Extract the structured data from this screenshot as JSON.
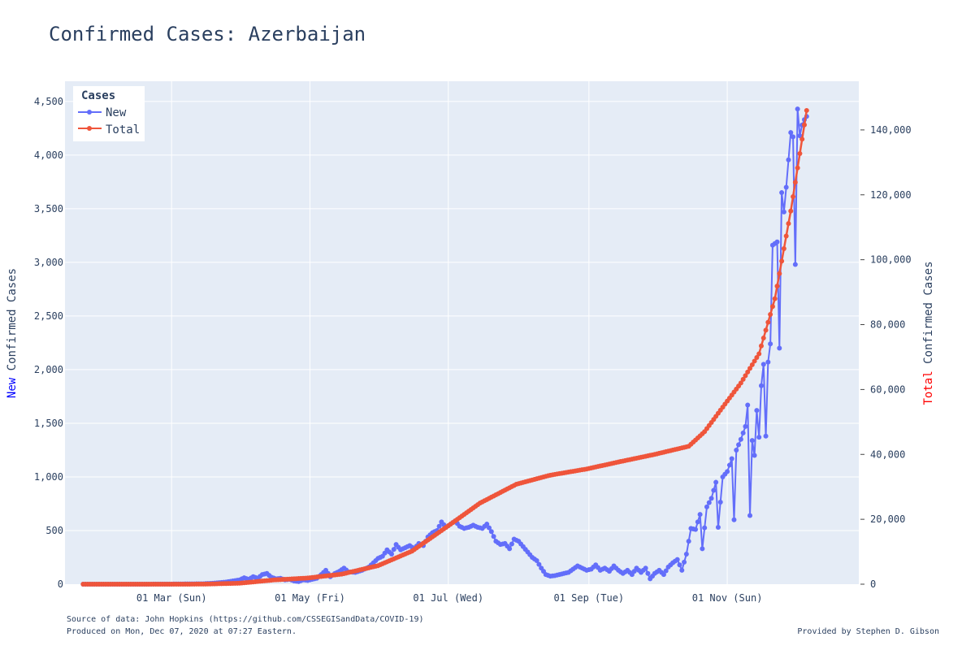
{
  "chart_data": {
    "type": "line",
    "title": "Confirmed Cases: Azerbaijan",
    "x_tick_labels": [
      "01 Mar (Sun)",
      "01 May (Fri)",
      "01 Jul (Wed)",
      "01 Sep (Tue)",
      "01 Nov (Sun)"
    ],
    "x_tick_dates": [
      "2020-03-01",
      "2020-05-01",
      "2020-07-01",
      "2020-09-01",
      "2020-11-01"
    ],
    "xlim": [
      "2020-01-14",
      "2020-12-29"
    ],
    "y_left": {
      "title_prefix": "New",
      "title_rest": " Confirmed Cases",
      "range": [
        0,
        4688
      ],
      "ticks": [
        0,
        500,
        1000,
        1500,
        2000,
        2500,
        3000,
        3500,
        4000,
        4500
      ],
      "tick_labels": [
        "0",
        "500",
        "1,000",
        "1,500",
        "2,000",
        "2,500",
        "3,000",
        "3,500",
        "4,000",
        "4,500"
      ]
    },
    "y_right": {
      "title_prefix": "Total",
      "title_rest": " Confirmed Cases",
      "range": [
        0,
        155000
      ],
      "ticks": [
        0,
        20000,
        40000,
        60000,
        80000,
        100000,
        120000,
        140000
      ],
      "tick_labels": [
        "0",
        "20,000",
        "40,000",
        "60,000",
        "80,000",
        "100,000",
        "120,000",
        "140,000"
      ]
    },
    "grid": true,
    "legend": {
      "title": "Cases",
      "position": "top-left"
    },
    "series": [
      {
        "name": "New",
        "axis": "left",
        "color": "#636efa",
        "points": [
          [
            "2020-01-22",
            0
          ],
          [
            "2020-02-01",
            0
          ],
          [
            "2020-02-15",
            0
          ],
          [
            "2020-02-28",
            1
          ],
          [
            "2020-03-05",
            2
          ],
          [
            "2020-03-10",
            3
          ],
          [
            "2020-03-15",
            4
          ],
          [
            "2020-03-20",
            10
          ],
          [
            "2020-03-25",
            20
          ],
          [
            "2020-03-28",
            30
          ],
          [
            "2020-03-31",
            40
          ],
          [
            "2020-04-02",
            60
          ],
          [
            "2020-04-04",
            45
          ],
          [
            "2020-04-06",
            70
          ],
          [
            "2020-04-08",
            55
          ],
          [
            "2020-04-10",
            90
          ],
          [
            "2020-04-12",
            100
          ],
          [
            "2020-04-14",
            65
          ],
          [
            "2020-04-16",
            50
          ],
          [
            "2020-04-18",
            55
          ],
          [
            "2020-04-20",
            40
          ],
          [
            "2020-04-22",
            45
          ],
          [
            "2020-04-24",
            30
          ],
          [
            "2020-04-26",
            25
          ],
          [
            "2020-04-28",
            40
          ],
          [
            "2020-04-30",
            35
          ],
          [
            "2020-05-02",
            45
          ],
          [
            "2020-05-04",
            55
          ],
          [
            "2020-05-06",
            90
          ],
          [
            "2020-05-08",
            130
          ],
          [
            "2020-05-10",
            70
          ],
          [
            "2020-05-12",
            100
          ],
          [
            "2020-05-14",
            120
          ],
          [
            "2020-05-16",
            150
          ],
          [
            "2020-05-18",
            115
          ],
          [
            "2020-05-21",
            110
          ],
          [
            "2020-05-24",
            130
          ],
          [
            "2020-05-27",
            160
          ],
          [
            "2020-05-29",
            200
          ],
          [
            "2020-05-31",
            240
          ],
          [
            "2020-06-02",
            260
          ],
          [
            "2020-06-04",
            320
          ],
          [
            "2020-06-06",
            280
          ],
          [
            "2020-06-08",
            370
          ],
          [
            "2020-06-10",
            320
          ],
          [
            "2020-06-12",
            340
          ],
          [
            "2020-06-14",
            360
          ],
          [
            "2020-06-16",
            330
          ],
          [
            "2020-06-18",
            380
          ],
          [
            "2020-06-20",
            360
          ],
          [
            "2020-06-22",
            440
          ],
          [
            "2020-06-24",
            480
          ],
          [
            "2020-06-26",
            500
          ],
          [
            "2020-06-28",
            580
          ],
          [
            "2020-06-30",
            530
          ],
          [
            "2020-07-02",
            560
          ],
          [
            "2020-07-04",
            590
          ],
          [
            "2020-07-06",
            540
          ],
          [
            "2020-07-08",
            520
          ],
          [
            "2020-07-10",
            530
          ],
          [
            "2020-07-12",
            550
          ],
          [
            "2020-07-14",
            530
          ],
          [
            "2020-07-16",
            520
          ],
          [
            "2020-07-18",
            560
          ],
          [
            "2020-07-20",
            490
          ],
          [
            "2020-07-22",
            400
          ],
          [
            "2020-07-24",
            370
          ],
          [
            "2020-07-26",
            380
          ],
          [
            "2020-07-28",
            330
          ],
          [
            "2020-07-30",
            420
          ],
          [
            "2020-08-01",
            400
          ],
          [
            "2020-08-03",
            350
          ],
          [
            "2020-08-05",
            300
          ],
          [
            "2020-08-07",
            250
          ],
          [
            "2020-08-09",
            220
          ],
          [
            "2020-08-11",
            150
          ],
          [
            "2020-08-13",
            90
          ],
          [
            "2020-08-15",
            75
          ],
          [
            "2020-08-17",
            80
          ],
          [
            "2020-08-19",
            90
          ],
          [
            "2020-08-21",
            100
          ],
          [
            "2020-08-23",
            110
          ],
          [
            "2020-08-25",
            140
          ],
          [
            "2020-08-27",
            170
          ],
          [
            "2020-08-29",
            150
          ],
          [
            "2020-08-31",
            130
          ],
          [
            "2020-09-02",
            140
          ],
          [
            "2020-09-04",
            180
          ],
          [
            "2020-09-06",
            130
          ],
          [
            "2020-09-08",
            150
          ],
          [
            "2020-09-10",
            120
          ],
          [
            "2020-09-12",
            170
          ],
          [
            "2020-09-14",
            130
          ],
          [
            "2020-09-16",
            100
          ],
          [
            "2020-09-18",
            130
          ],
          [
            "2020-09-20",
            90
          ],
          [
            "2020-09-22",
            150
          ],
          [
            "2020-09-24",
            110
          ],
          [
            "2020-09-26",
            150
          ],
          [
            "2020-09-28",
            50
          ],
          [
            "2020-09-30",
            100
          ],
          [
            "2020-10-02",
            130
          ],
          [
            "2020-10-04",
            90
          ],
          [
            "2020-10-06",
            160
          ],
          [
            "2020-10-08",
            200
          ],
          [
            "2020-10-10",
            230
          ],
          [
            "2020-10-12",
            130
          ],
          [
            "2020-10-14",
            280
          ],
          [
            "2020-10-16",
            520
          ],
          [
            "2020-10-18",
            510
          ],
          [
            "2020-10-20",
            650
          ],
          [
            "2020-10-21",
            330
          ],
          [
            "2020-10-23",
            720
          ],
          [
            "2020-10-25",
            800
          ],
          [
            "2020-10-27",
            950
          ],
          [
            "2020-10-28",
            530
          ],
          [
            "2020-10-30",
            1000
          ],
          [
            "2020-11-01",
            1050
          ],
          [
            "2020-11-03",
            1170
          ],
          [
            "2020-11-04",
            600
          ],
          [
            "2020-11-05",
            1250
          ],
          [
            "2020-11-07",
            1350
          ],
          [
            "2020-11-09",
            1470
          ],
          [
            "2020-11-10",
            1670
          ],
          [
            "2020-11-11",
            640
          ],
          [
            "2020-11-12",
            1340
          ],
          [
            "2020-11-13",
            1200
          ],
          [
            "2020-11-14",
            1620
          ],
          [
            "2020-11-15",
            1370
          ],
          [
            "2020-11-16",
            1850
          ],
          [
            "2020-11-17",
            2050
          ],
          [
            "2020-11-18",
            1380
          ],
          [
            "2020-11-19",
            2070
          ],
          [
            "2020-11-20",
            2240
          ],
          [
            "2020-11-21",
            3160
          ],
          [
            "2020-11-23",
            3190
          ],
          [
            "2020-11-24",
            2200
          ],
          [
            "2020-11-25",
            3650
          ],
          [
            "2020-11-26",
            3470
          ],
          [
            "2020-11-27",
            3700
          ],
          [
            "2020-11-29",
            4210
          ],
          [
            "2020-11-30",
            4170
          ],
          [
            "2020-12-01",
            2980
          ],
          [
            "2020-12-02",
            4430
          ],
          [
            "2020-12-03",
            4180
          ],
          [
            "2020-12-04",
            4280
          ],
          [
            "2020-12-05",
            4330
          ],
          [
            "2020-12-06",
            4360
          ]
        ]
      },
      {
        "name": "Total",
        "axis": "right",
        "color": "#ef553b",
        "points": [
          [
            "2020-01-22",
            0
          ],
          [
            "2020-02-28",
            1
          ],
          [
            "2020-03-15",
            20
          ],
          [
            "2020-03-31",
            300
          ],
          [
            "2020-04-15",
            1300
          ],
          [
            "2020-04-30",
            1900
          ],
          [
            "2020-05-15",
            3100
          ],
          [
            "2020-05-31",
            5700
          ],
          [
            "2020-06-15",
            10200
          ],
          [
            "2020-06-30",
            17500
          ],
          [
            "2020-07-15",
            25000
          ],
          [
            "2020-07-31",
            30800
          ],
          [
            "2020-08-15",
            33600
          ],
          [
            "2020-08-31",
            35500
          ],
          [
            "2020-09-15",
            37800
          ],
          [
            "2020-09-30",
            40000
          ],
          [
            "2020-10-15",
            42500
          ],
          [
            "2020-10-22",
            47000
          ],
          [
            "2020-10-31",
            55500
          ],
          [
            "2020-11-07",
            62000
          ],
          [
            "2020-11-15",
            71000
          ],
          [
            "2020-11-22",
            88000
          ],
          [
            "2020-11-29",
            115000
          ],
          [
            "2020-12-06",
            146000
          ]
        ]
      }
    ],
    "source_note": "Source of data: John Hopkins (https://github.com/CSSEGISandData/COVID-19)",
    "produced_note": "Produced on Mon, Dec 07, 2020 at 07:27 Eastern.",
    "credit": "Provided by Stephen D. Gibson"
  }
}
